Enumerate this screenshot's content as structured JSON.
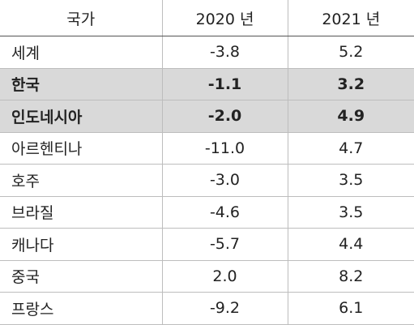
{
  "table": {
    "header": [
      "국가",
      "2020 년",
      "2021 년"
    ],
    "rows": [
      [
        "세계",
        "-3.8",
        "5.2"
      ],
      [
        "한국",
        "-1.1",
        "3.2"
      ],
      [
        "인도네시아",
        "-2.0",
        "4.9"
      ],
      [
        "아르헨티나",
        "-11.0",
        "4.7"
      ],
      [
        "호주",
        "-3.0",
        "3.5"
      ],
      [
        "브라질",
        "-4.6",
        "3.5"
      ],
      [
        "캐나다",
        "-5.7",
        "4.4"
      ],
      [
        "중국",
        "2.0",
        "8.2"
      ],
      [
        "프랑스",
        "-9.2",
        "6.1"
      ]
    ]
  }
}
